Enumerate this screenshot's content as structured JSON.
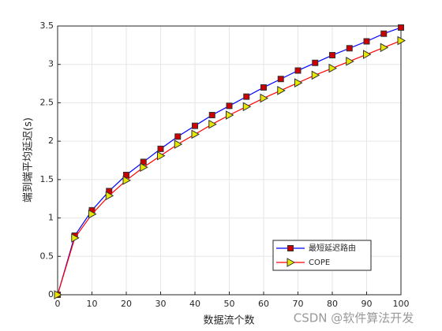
{
  "chart_data": {
    "type": "line",
    "xlabel": "数据流个数",
    "ylabel": "端到端平均延迟(s)",
    "x": [
      0,
      5,
      10,
      15,
      20,
      25,
      30,
      35,
      40,
      45,
      50,
      55,
      60,
      65,
      70,
      75,
      80,
      85,
      90,
      95,
      100
    ],
    "series": [
      {
        "name": "最短延迟路由",
        "color": "#0000ff",
        "marker": "square",
        "marker_color": "#cc0000",
        "values": [
          0,
          0.77,
          1.1,
          1.35,
          1.56,
          1.73,
          1.9,
          2.06,
          2.2,
          2.34,
          2.46,
          2.58,
          2.7,
          2.81,
          2.92,
          3.02,
          3.12,
          3.21,
          3.3,
          3.4,
          3.48
        ]
      },
      {
        "name": "COPE",
        "color": "#ff0000",
        "marker": "triangle-right",
        "marker_color": "#e6e600",
        "values": [
          0,
          0.74,
          1.05,
          1.29,
          1.49,
          1.66,
          1.81,
          1.96,
          2.09,
          2.22,
          2.34,
          2.45,
          2.56,
          2.66,
          2.76,
          2.86,
          2.95,
          3.04,
          3.13,
          3.22,
          3.31
        ]
      }
    ],
    "xlim": [
      0,
      100
    ],
    "xticks": [
      0,
      10,
      20,
      30,
      40,
      50,
      60,
      70,
      80,
      90,
      100
    ],
    "ylim": [
      0,
      3.5
    ],
    "yticks": [
      0,
      0.5,
      1,
      1.5,
      2,
      2.5,
      3,
      3.5
    ],
    "grid": true,
    "legend_position": "southeast",
    "watermark": "CSDN @软件算法开发"
  }
}
